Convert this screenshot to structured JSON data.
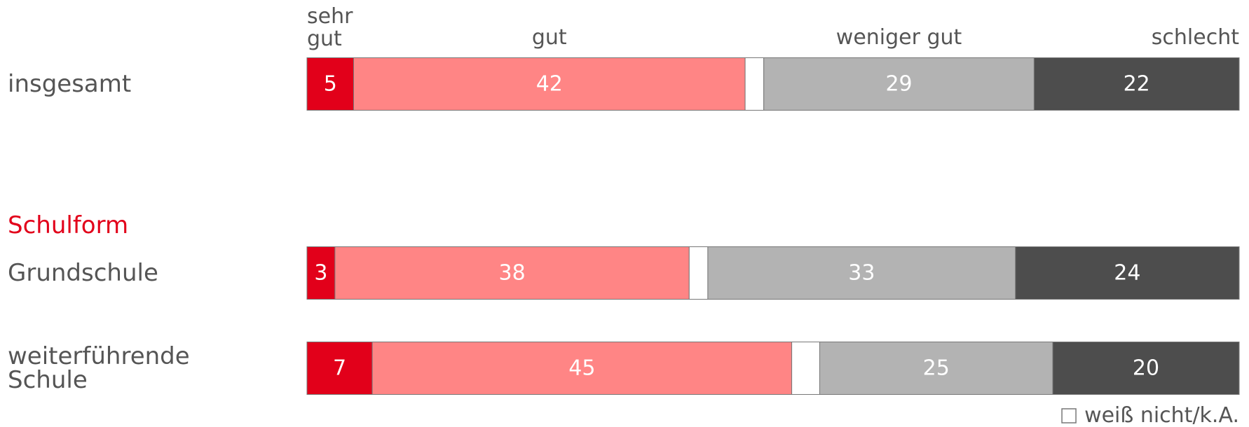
{
  "chart_data": {
    "type": "stacked_bar",
    "orientation": "horizontal",
    "group_label": "Schulform",
    "categories": [
      "insgesamt",
      "Grundschule",
      "weiterführende Schule"
    ],
    "xlim": [
      0,
      100
    ],
    "legend": "bottom right",
    "series": [
      {
        "name": "sehr gut",
        "color": "#e2001a",
        "values": [
          5,
          3,
          7
        ]
      },
      {
        "name": "gut",
        "color": "#ff8585",
        "values": [
          42,
          38,
          45
        ]
      },
      {
        "name": "weiß nicht/k.A.",
        "color": "#ffffff",
        "values": [
          2,
          2,
          3
        ],
        "labels": false
      },
      {
        "name": "weniger gut",
        "color": "#b3b3b3",
        "values": [
          29,
          33,
          25
        ]
      },
      {
        "name": "schlecht",
        "color": "#4d4d4d",
        "values": [
          22,
          24,
          20
        ]
      }
    ]
  }
}
